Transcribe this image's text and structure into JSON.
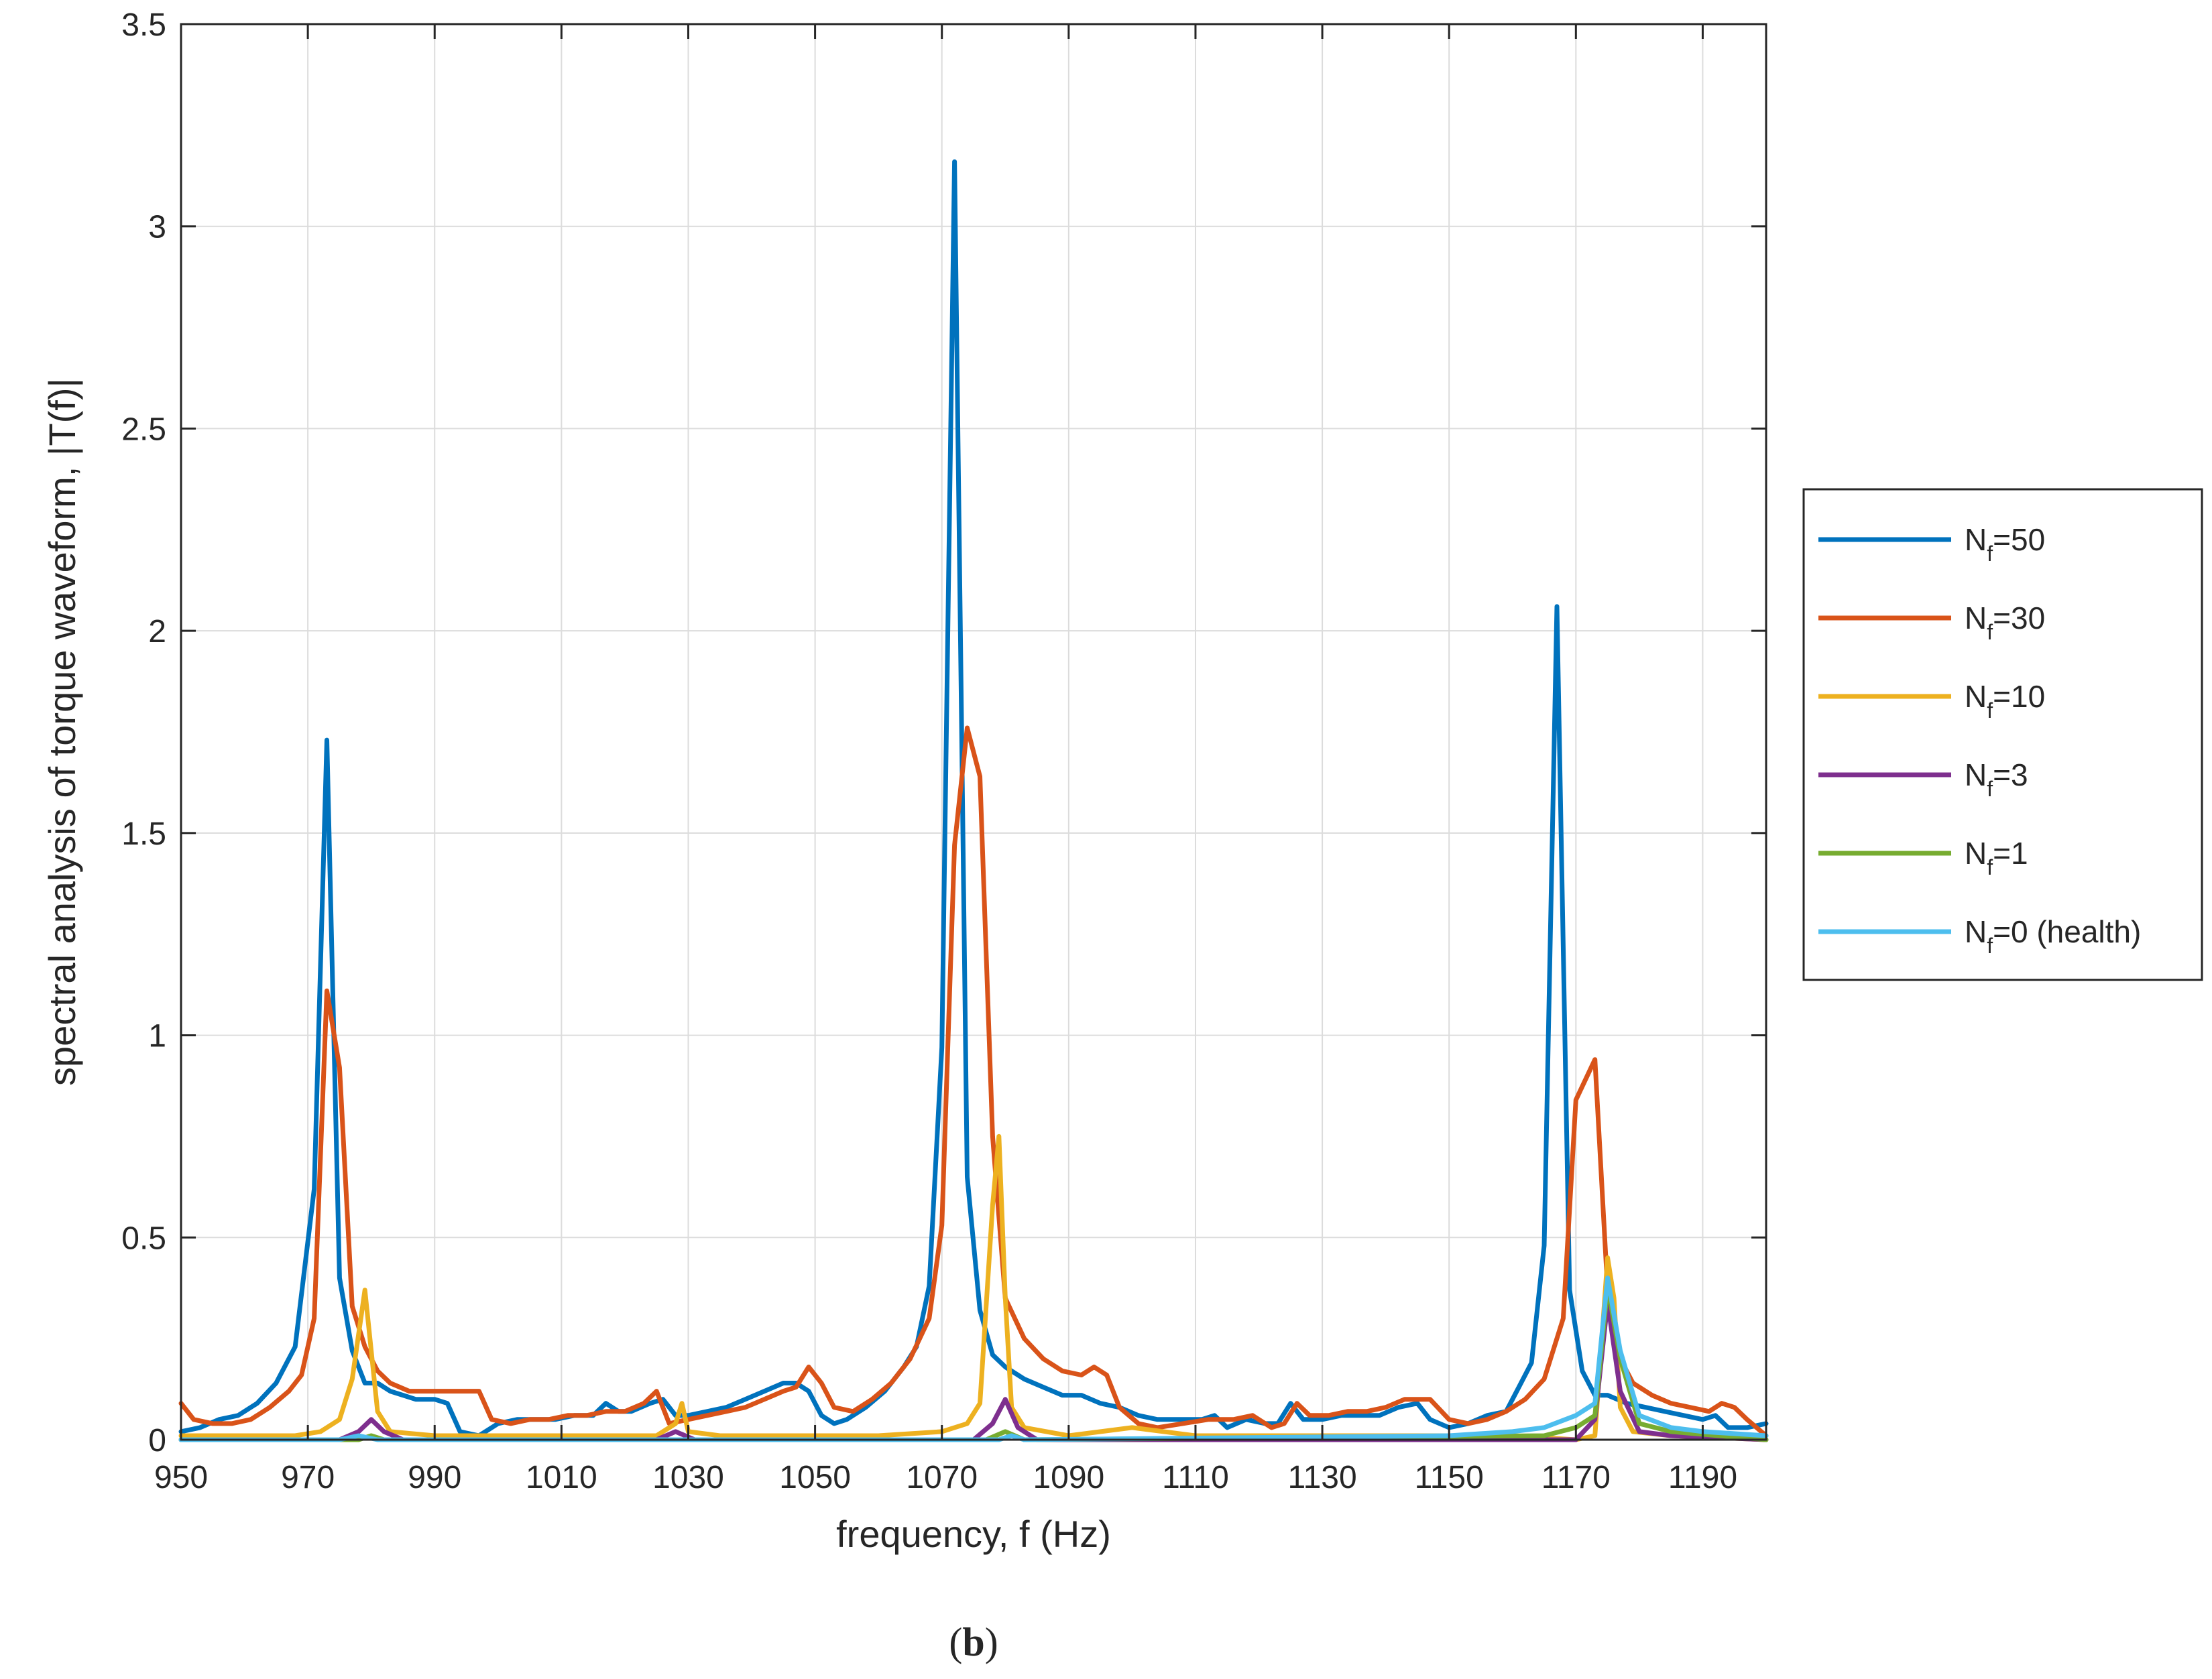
{
  "chart_data": {
    "type": "line",
    "xlabel": "frequency, f (Hz)",
    "ylabel": "spectral analysis of torque waveform, |T(f)|",
    "xlim": [
      950,
      1200
    ],
    "ylim": [
      0,
      3.5
    ],
    "xticks": [
      950,
      970,
      990,
      1010,
      1030,
      1050,
      1070,
      1090,
      1110,
      1130,
      1150,
      1170,
      1190
    ],
    "xtick_labels": [
      "950",
      "970",
      "990",
      "1010",
      "1030",
      "1050",
      "1070",
      "1090",
      "1110",
      "1130",
      "1150",
      "1170",
      "1190"
    ],
    "yticks": [
      0,
      0.5,
      1,
      1.5,
      2,
      2.5,
      3,
      3.5
    ],
    "ytick_labels": [
      "0",
      "0.5",
      "1",
      "1.5",
      "2",
      "2.5",
      "3",
      "3.5"
    ],
    "grid": true,
    "legend_position": "outside-right",
    "caption": "(b)",
    "series": [
      {
        "name_main": "N",
        "name_sub": "f",
        "name_rest": "=50",
        "color": "#0072BD",
        "points": [
          [
            950,
            0.02
          ],
          [
            953,
            0.03
          ],
          [
            956,
            0.05
          ],
          [
            959,
            0.06
          ],
          [
            962,
            0.09
          ],
          [
            965,
            0.14
          ],
          [
            968,
            0.23
          ],
          [
            971,
            0.62
          ],
          [
            973,
            1.73
          ],
          [
            975,
            0.4
          ],
          [
            977,
            0.22
          ],
          [
            979,
            0.14
          ],
          [
            981,
            0.14
          ],
          [
            983,
            0.12
          ],
          [
            985,
            0.11
          ],
          [
            987,
            0.1
          ],
          [
            990,
            0.1
          ],
          [
            992,
            0.09
          ],
          [
            994,
            0.02
          ],
          [
            997,
            0.01
          ],
          [
            1000,
            0.04
          ],
          [
            1003,
            0.05
          ],
          [
            1006,
            0.05
          ],
          [
            1009,
            0.05
          ],
          [
            1012,
            0.06
          ],
          [
            1015,
            0.06
          ],
          [
            1017,
            0.09
          ],
          [
            1019,
            0.07
          ],
          [
            1021,
            0.07
          ],
          [
            1024,
            0.09
          ],
          [
            1026,
            0.1
          ],
          [
            1028,
            0.06
          ],
          [
            1030,
            0.06
          ],
          [
            1033,
            0.07
          ],
          [
            1036,
            0.08
          ],
          [
            1039,
            0.1
          ],
          [
            1042,
            0.12
          ],
          [
            1045,
            0.14
          ],
          [
            1047,
            0.14
          ],
          [
            1049,
            0.12
          ],
          [
            1051,
            0.06
          ],
          [
            1053,
            0.04
          ],
          [
            1055,
            0.05
          ],
          [
            1058,
            0.08
          ],
          [
            1061,
            0.12
          ],
          [
            1064,
            0.18
          ],
          [
            1066,
            0.23
          ],
          [
            1068,
            0.38
          ],
          [
            1070,
            0.97
          ],
          [
            1072,
            3.16
          ],
          [
            1074,
            0.65
          ],
          [
            1076,
            0.32
          ],
          [
            1078,
            0.21
          ],
          [
            1080,
            0.18
          ],
          [
            1083,
            0.15
          ],
          [
            1086,
            0.13
          ],
          [
            1089,
            0.11
          ],
          [
            1092,
            0.11
          ],
          [
            1095,
            0.09
          ],
          [
            1098,
            0.08
          ],
          [
            1101,
            0.06
          ],
          [
            1104,
            0.05
          ],
          [
            1108,
            0.05
          ],
          [
            1111,
            0.05
          ],
          [
            1113,
            0.06
          ],
          [
            1115,
            0.03
          ],
          [
            1118,
            0.05
          ],
          [
            1121,
            0.04
          ],
          [
            1123,
            0.04
          ],
          [
            1125,
            0.09
          ],
          [
            1127,
            0.05
          ],
          [
            1130,
            0.05
          ],
          [
            1133,
            0.06
          ],
          [
            1136,
            0.06
          ],
          [
            1139,
            0.06
          ],
          [
            1142,
            0.08
          ],
          [
            1145,
            0.09
          ],
          [
            1147,
            0.05
          ],
          [
            1150,
            0.03
          ],
          [
            1153,
            0.04
          ],
          [
            1156,
            0.06
          ],
          [
            1159,
            0.07
          ],
          [
            1161,
            0.13
          ],
          [
            1163,
            0.19
          ],
          [
            1165,
            0.48
          ],
          [
            1167,
            2.06
          ],
          [
            1169,
            0.37
          ],
          [
            1171,
            0.17
          ],
          [
            1173,
            0.11
          ],
          [
            1175,
            0.11
          ],
          [
            1178,
            0.09
          ],
          [
            1181,
            0.08
          ],
          [
            1184,
            0.07
          ],
          [
            1187,
            0.06
          ],
          [
            1190,
            0.05
          ],
          [
            1192,
            0.06
          ],
          [
            1194,
            0.03
          ],
          [
            1197,
            0.03
          ],
          [
            1200,
            0.04
          ]
        ]
      },
      {
        "name_main": "N",
        "name_sub": "f",
        "name_rest": "=30",
        "color": "#D95319",
        "points": [
          [
            950,
            0.09
          ],
          [
            952,
            0.05
          ],
          [
            955,
            0.04
          ],
          [
            958,
            0.04
          ],
          [
            961,
            0.05
          ],
          [
            964,
            0.08
          ],
          [
            967,
            0.12
          ],
          [
            969,
            0.16
          ],
          [
            971,
            0.3
          ],
          [
            973,
            1.11
          ],
          [
            975,
            0.92
          ],
          [
            977,
            0.33
          ],
          [
            979,
            0.23
          ],
          [
            981,
            0.17
          ],
          [
            983,
            0.14
          ],
          [
            986,
            0.12
          ],
          [
            989,
            0.12
          ],
          [
            992,
            0.12
          ],
          [
            995,
            0.12
          ],
          [
            997,
            0.12
          ],
          [
            999,
            0.05
          ],
          [
            1002,
            0.04
          ],
          [
            1005,
            0.05
          ],
          [
            1008,
            0.05
          ],
          [
            1011,
            0.06
          ],
          [
            1014,
            0.06
          ],
          [
            1017,
            0.07
          ],
          [
            1020,
            0.07
          ],
          [
            1023,
            0.09
          ],
          [
            1025,
            0.12
          ],
          [
            1027,
            0.04
          ],
          [
            1030,
            0.05
          ],
          [
            1033,
            0.06
          ],
          [
            1036,
            0.07
          ],
          [
            1039,
            0.08
          ],
          [
            1042,
            0.1
          ],
          [
            1045,
            0.12
          ],
          [
            1047,
            0.13
          ],
          [
            1049,
            0.18
          ],
          [
            1051,
            0.14
          ],
          [
            1053,
            0.08
          ],
          [
            1056,
            0.07
          ],
          [
            1059,
            0.1
          ],
          [
            1062,
            0.14
          ],
          [
            1065,
            0.2
          ],
          [
            1068,
            0.3
          ],
          [
            1070,
            0.53
          ],
          [
            1072,
            1.47
          ],
          [
            1074,
            1.76
          ],
          [
            1076,
            1.64
          ],
          [
            1078,
            0.75
          ],
          [
            1080,
            0.35
          ],
          [
            1083,
            0.25
          ],
          [
            1086,
            0.2
          ],
          [
            1089,
            0.17
          ],
          [
            1092,
            0.16
          ],
          [
            1094,
            0.18
          ],
          [
            1096,
            0.16
          ],
          [
            1098,
            0.08
          ],
          [
            1101,
            0.04
          ],
          [
            1104,
            0.03
          ],
          [
            1108,
            0.04
          ],
          [
            1112,
            0.05
          ],
          [
            1116,
            0.05
          ],
          [
            1119,
            0.06
          ],
          [
            1122,
            0.03
          ],
          [
            1124,
            0.04
          ],
          [
            1126,
            0.09
          ],
          [
            1128,
            0.06
          ],
          [
            1131,
            0.06
          ],
          [
            1134,
            0.07
          ],
          [
            1137,
            0.07
          ],
          [
            1140,
            0.08
          ],
          [
            1143,
            0.1
          ],
          [
            1147,
            0.1
          ],
          [
            1150,
            0.05
          ],
          [
            1153,
            0.04
          ],
          [
            1156,
            0.05
          ],
          [
            1159,
            0.07
          ],
          [
            1162,
            0.1
          ],
          [
            1165,
            0.15
          ],
          [
            1168,
            0.3
          ],
          [
            1170,
            0.84
          ],
          [
            1173,
            0.94
          ],
          [
            1175,
            0.37
          ],
          [
            1177,
            0.2
          ],
          [
            1179,
            0.14
          ],
          [
            1182,
            0.11
          ],
          [
            1185,
            0.09
          ],
          [
            1188,
            0.08
          ],
          [
            1191,
            0.07
          ],
          [
            1193,
            0.09
          ],
          [
            1195,
            0.08
          ],
          [
            1197,
            0.05
          ],
          [
            1200,
            0.01
          ]
        ]
      },
      {
        "name_main": "N",
        "name_sub": "f",
        "name_rest": "=10",
        "color": "#EDB120",
        "points": [
          [
            950,
            0.01
          ],
          [
            960,
            0.01
          ],
          [
            968,
            0.01
          ],
          [
            972,
            0.02
          ],
          [
            975,
            0.05
          ],
          [
            977,
            0.15
          ],
          [
            979,
            0.37
          ],
          [
            981,
            0.07
          ],
          [
            983,
            0.02
          ],
          [
            990,
            0.01
          ],
          [
            1000,
            0.01
          ],
          [
            1015,
            0.01
          ],
          [
            1025,
            0.01
          ],
          [
            1028,
            0.04
          ],
          [
            1029,
            0.09
          ],
          [
            1030,
            0.02
          ],
          [
            1035,
            0.01
          ],
          [
            1050,
            0.01
          ],
          [
            1060,
            0.01
          ],
          [
            1070,
            0.02
          ],
          [
            1074,
            0.04
          ],
          [
            1076,
            0.09
          ],
          [
            1078,
            0.58
          ],
          [
            1079,
            0.75
          ],
          [
            1080,
            0.35
          ],
          [
            1081,
            0.08
          ],
          [
            1083,
            0.03
          ],
          [
            1090,
            0.01
          ],
          [
            1100,
            0.03
          ],
          [
            1110,
            0.01
          ],
          [
            1130,
            0.01
          ],
          [
            1150,
            0.01
          ],
          [
            1160,
            0.01
          ],
          [
            1170,
            0.0
          ],
          [
            1173,
            0.01
          ],
          [
            1175,
            0.45
          ],
          [
            1176,
            0.35
          ],
          [
            1177,
            0.08
          ],
          [
            1179,
            0.02
          ],
          [
            1185,
            0.01
          ],
          [
            1200,
            0.0
          ]
        ]
      },
      {
        "name_main": "N",
        "name_sub": "f",
        "name_rest": "=3",
        "color": "#7E2F8E",
        "points": [
          [
            950,
            0.0
          ],
          [
            975,
            0.0
          ],
          [
            978,
            0.02
          ],
          [
            980,
            0.05
          ],
          [
            982,
            0.02
          ],
          [
            985,
            0.0
          ],
          [
            1025,
            0.0
          ],
          [
            1028,
            0.02
          ],
          [
            1031,
            0.0
          ],
          [
            1075,
            0.0
          ],
          [
            1078,
            0.04
          ],
          [
            1080,
            0.1
          ],
          [
            1082,
            0.03
          ],
          [
            1085,
            0.0
          ],
          [
            1170,
            0.0
          ],
          [
            1173,
            0.05
          ],
          [
            1175,
            0.34
          ],
          [
            1177,
            0.12
          ],
          [
            1180,
            0.02
          ],
          [
            1185,
            0.01
          ],
          [
            1200,
            0.0
          ]
        ]
      },
      {
        "name_main": "N",
        "name_sub": "f",
        "name_rest": "=1",
        "color": "#77AC30",
        "points": [
          [
            950,
            0.0
          ],
          [
            978,
            0.0
          ],
          [
            980,
            0.01
          ],
          [
            982,
            0.0
          ],
          [
            1077,
            0.0
          ],
          [
            1080,
            0.02
          ],
          [
            1083,
            0.0
          ],
          [
            1165,
            0.01
          ],
          [
            1170,
            0.03
          ],
          [
            1173,
            0.06
          ],
          [
            1175,
            0.38
          ],
          [
            1177,
            0.2
          ],
          [
            1180,
            0.04
          ],
          [
            1185,
            0.02
          ],
          [
            1200,
            0.0
          ]
        ]
      },
      {
        "name_main": "N",
        "name_sub": "f",
        "name_rest": "=0 (health)",
        "color": "#4DBEEE",
        "points": [
          [
            950,
            0.0
          ],
          [
            975,
            0.0
          ],
          [
            978,
            0.01
          ],
          [
            981,
            0.0
          ],
          [
            1079,
            0.0
          ],
          [
            1081,
            0.01
          ],
          [
            1083,
            0.0
          ],
          [
            1150,
            0.01
          ],
          [
            1160,
            0.02
          ],
          [
            1165,
            0.03
          ],
          [
            1170,
            0.06
          ],
          [
            1173,
            0.09
          ],
          [
            1175,
            0.4
          ],
          [
            1177,
            0.22
          ],
          [
            1180,
            0.06
          ],
          [
            1185,
            0.03
          ],
          [
            1190,
            0.02
          ],
          [
            1200,
            0.01
          ]
        ]
      }
    ]
  }
}
